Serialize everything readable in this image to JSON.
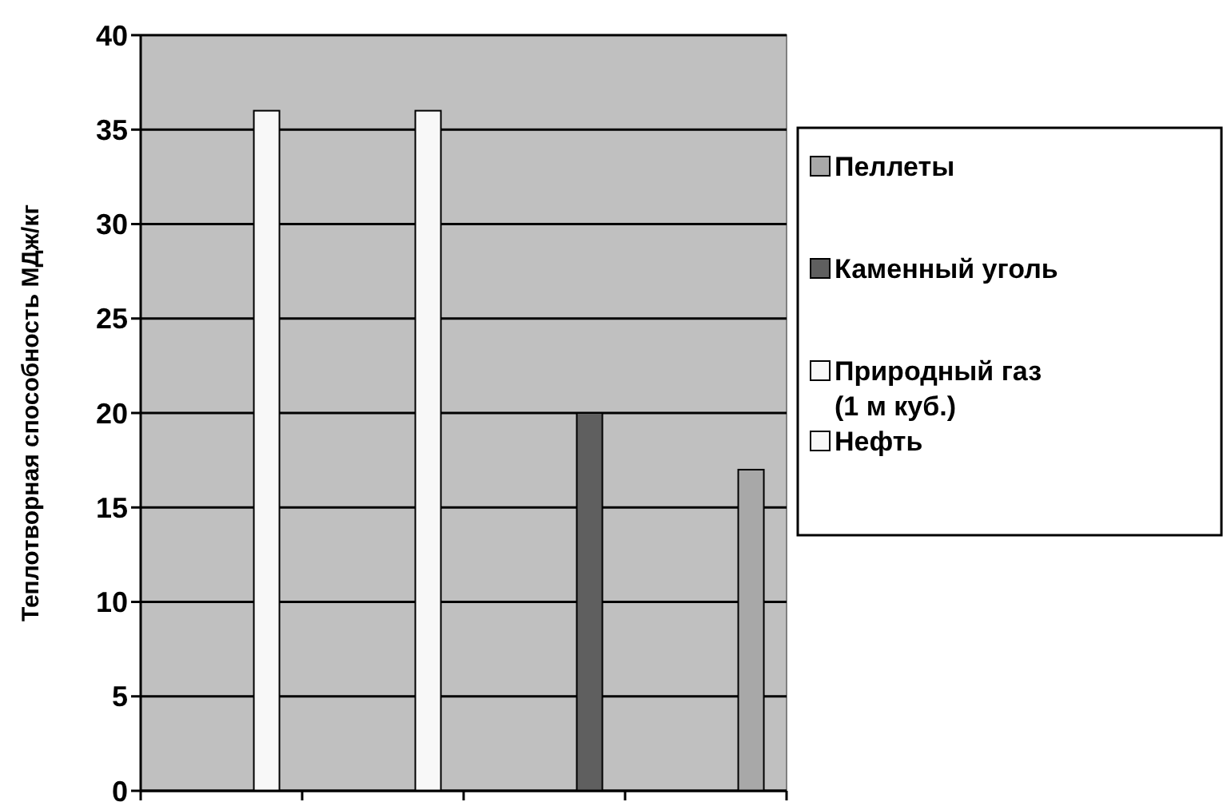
{
  "chart_data": {
    "type": "bar",
    "ylabel": "Теплотворная способность МДж/кг",
    "categories": [
      null,
      null,
      null,
      null
    ],
    "series": [
      {
        "name": "Пеллеты",
        "color": "#a8a8a8",
        "values": [
          null,
          null,
          null,
          17
        ]
      },
      {
        "name": "Каменный уголь",
        "color": "#5f5f5f",
        "values": [
          null,
          null,
          20,
          null
        ]
      },
      {
        "name": "Природный газ (1 м куб.)",
        "color": "#f8f8f8",
        "values": [
          null,
          36,
          null,
          null
        ]
      },
      {
        "name": "Нефть",
        "color": "#f8f8f8",
        "values": [
          36,
          null,
          null,
          null
        ]
      }
    ],
    "ylim": [
      0,
      40
    ],
    "yticks": [
      0,
      5,
      10,
      15,
      20,
      25,
      30,
      35,
      40
    ],
    "grid": "y",
    "legend": "right"
  }
}
